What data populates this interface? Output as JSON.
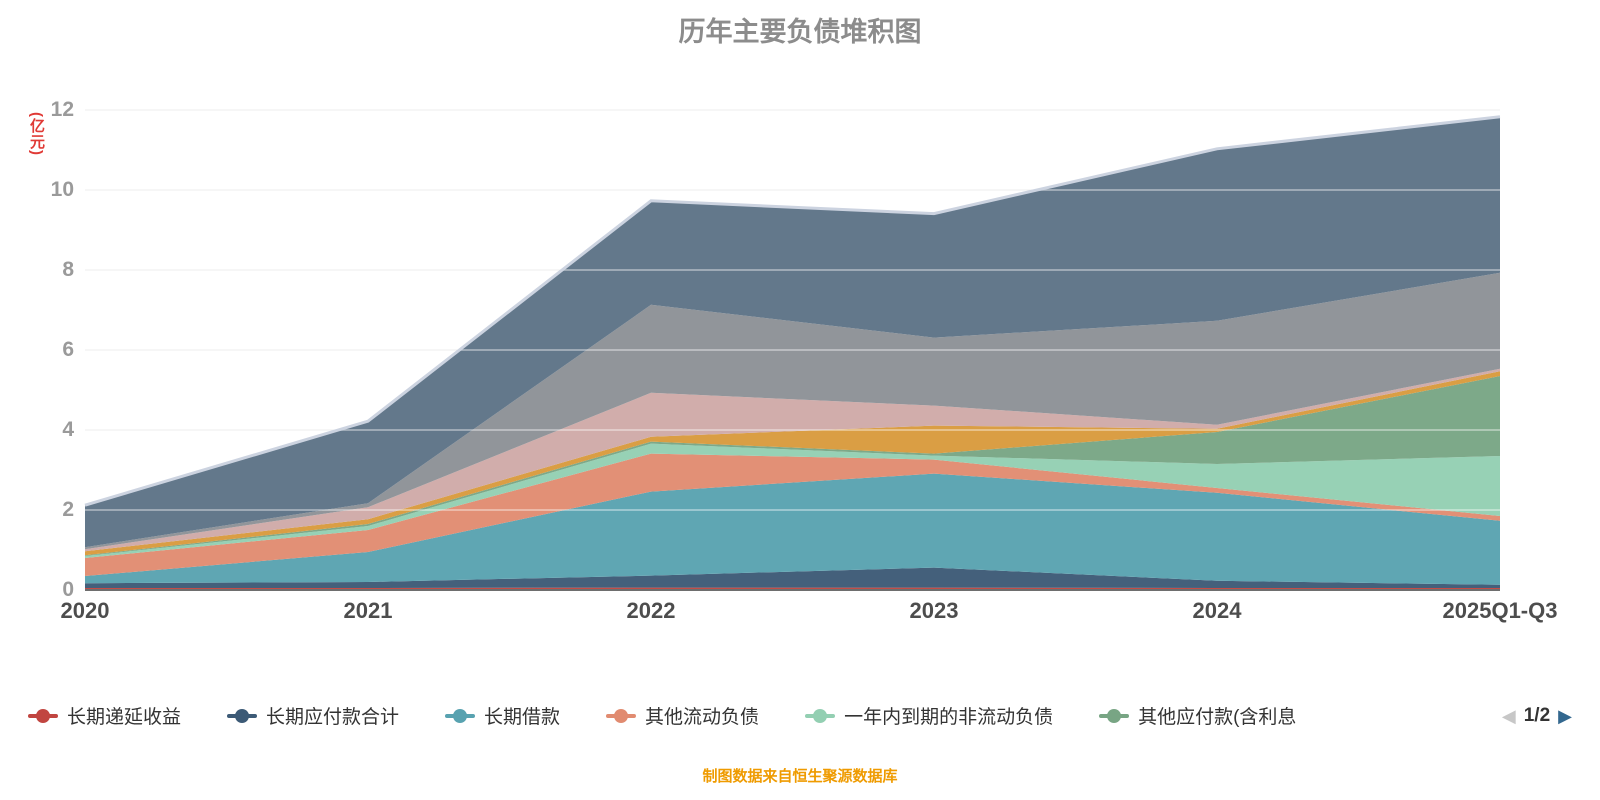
{
  "title": "历年主要负债堆积图",
  "caption": "制图数据来自恒生聚源数据库",
  "y_axis": {
    "unit": "(亿元)",
    "ticks": [
      0,
      2,
      4,
      6,
      8,
      10,
      12
    ],
    "max": 12
  },
  "legend": {
    "page_label": "1/2",
    "prev_icon": "◀",
    "next_icon": "▶",
    "items": [
      {
        "label": "长期递延收益",
        "color": "#c14540"
      },
      {
        "label": "长期应付款合计",
        "color": "#3c5a76"
      },
      {
        "label": "长期借款",
        "color": "#58a2b0"
      },
      {
        "label": "其他流动负债",
        "color": "#e18b70"
      },
      {
        "label": "一年内到期的非流动负债",
        "color": "#93cfb2"
      },
      {
        "label": "其他应付款(含利息",
        "color": "#78a584"
      }
    ]
  },
  "chart_data": {
    "type": "area",
    "stacked": true,
    "title": "历年主要负债堆积图",
    "xlabel": "",
    "ylabel": "(亿元)",
    "ylim": [
      0,
      12
    ],
    "grid": true,
    "legend_position": "bottom",
    "categories": [
      "2020",
      "2021",
      "2022",
      "2023",
      "2024",
      "2025Q1-Q3"
    ],
    "series": [
      {
        "name": "长期递延收益",
        "color": "#c14540",
        "legend_page": 1,
        "values": [
          0.05,
          0.05,
          0.06,
          0.06,
          0.05,
          0.05
        ]
      },
      {
        "name": "长期应付款合计",
        "color": "#3c5a76",
        "legend_page": 1,
        "values": [
          0.12,
          0.15,
          0.3,
          0.5,
          0.18,
          0.08
        ]
      },
      {
        "name": "长期借款",
        "color": "#58a2b0",
        "legend_page": 1,
        "values": [
          0.18,
          0.75,
          2.1,
          2.35,
          2.2,
          1.6
        ]
      },
      {
        "name": "其他流动负债",
        "color": "#e18b70",
        "legend_page": 1,
        "values": [
          0.45,
          0.55,
          0.95,
          0.35,
          0.12,
          0.12
        ]
      },
      {
        "name": "一年内到期的非流动负债",
        "color": "#93cfb2",
        "legend_page": 1,
        "values": [
          0.05,
          0.1,
          0.25,
          0.1,
          0.6,
          1.5
        ]
      },
      {
        "name": "其他应付款(含利息",
        "color": "#78a584",
        "legend_page": 1,
        "values": [
          0.02,
          0.05,
          0.05,
          0.05,
          0.8,
          2.0
        ]
      },
      {
        "name": "",
        "color": "#d89a3c",
        "legend_page": 2,
        "values": [
          0.1,
          0.12,
          0.12,
          0.7,
          0.08,
          0.12
        ]
      },
      {
        "name": "",
        "color": "#cfaaa8",
        "legend_page": 2,
        "values": [
          0.05,
          0.3,
          1.1,
          0.5,
          0.1,
          0.06
        ]
      },
      {
        "name": "",
        "color": "#8d9196",
        "legend_page": 2,
        "values": [
          0.05,
          0.1,
          2.2,
          1.7,
          2.6,
          2.4
        ]
      },
      {
        "name": "",
        "color": "#5d7386",
        "legend_page": 2,
        "values": [
          1.05,
          2.05,
          2.6,
          3.1,
          4.3,
          3.9
        ]
      }
    ],
    "totals": [
      2.12,
      4.22,
      9.73,
      9.41,
      11.03,
      11.83
    ]
  }
}
